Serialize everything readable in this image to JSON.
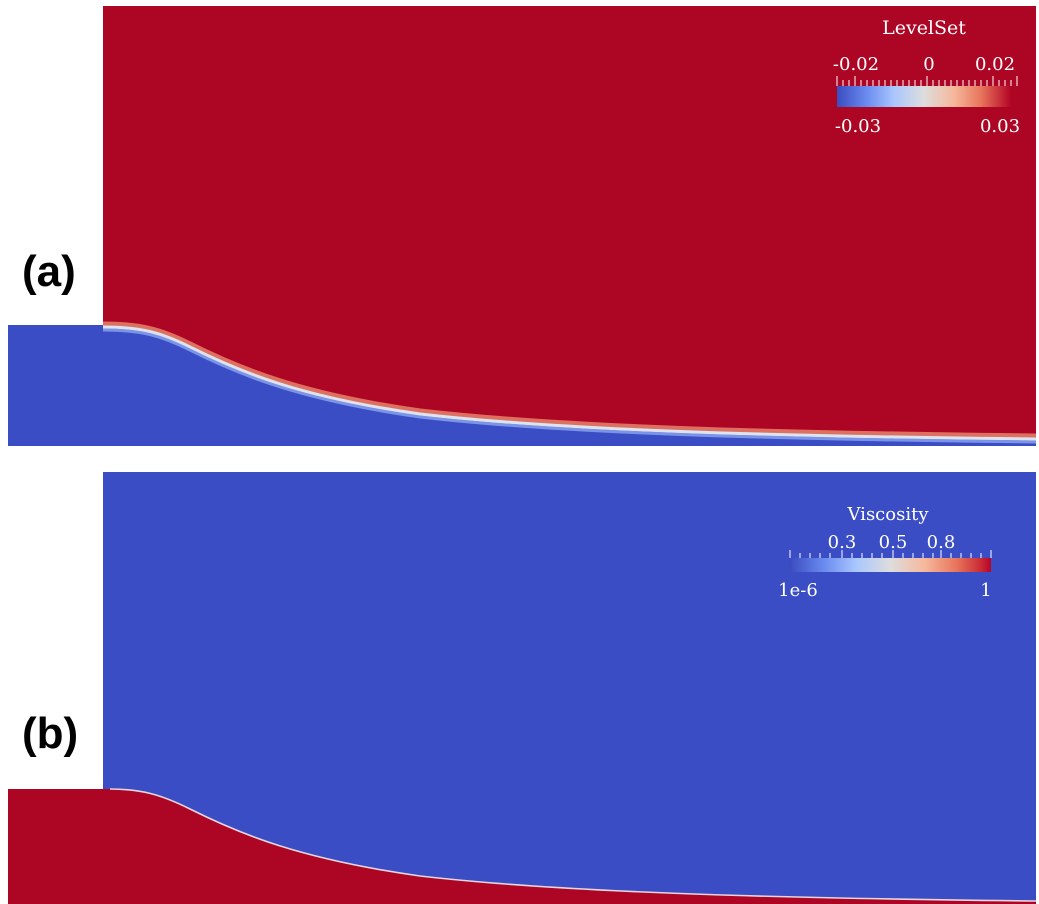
{
  "panels": [
    {
      "label": "(a)",
      "colorbar": {
        "title": "LevelSet",
        "top_ticks": [
          "-0.02",
          "0",
          "0.02"
        ],
        "min_label": "-0.03",
        "max_label": "0.03",
        "range": [
          -0.03,
          0.03
        ]
      },
      "colors": {
        "upper": "#ad0524",
        "lower": "#3b4dc5"
      }
    },
    {
      "label": "(b)",
      "colorbar": {
        "title": "Viscosity",
        "top_ticks": [
          "0.3",
          "0.5",
          "0.8"
        ],
        "min_label": "1e-6",
        "max_label": "1",
        "range": [
          1e-06,
          1
        ]
      },
      "colors": {
        "upper": "#3b4dc5",
        "lower": "#ad0524"
      }
    }
  ],
  "colormap": [
    "#3b4cc0",
    "#6a8bef",
    "#aac7fd",
    "#dddddd",
    "#f6b89c",
    "#e7745b",
    "#b40426"
  ]
}
